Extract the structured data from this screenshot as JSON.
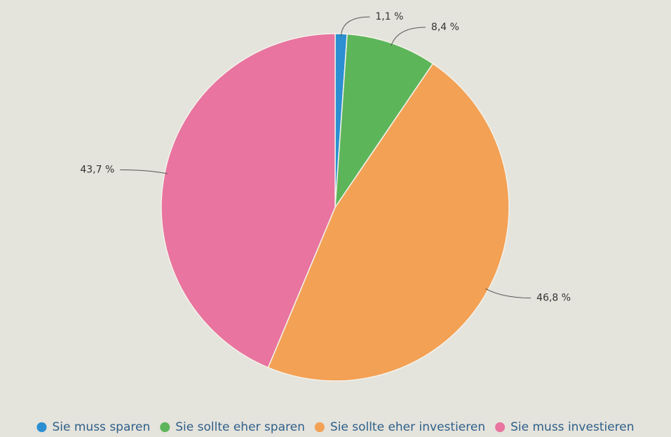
{
  "chart_data": {
    "type": "pie",
    "categories": [
      "Sie muss sparen",
      "Sie sollte eher sparen",
      "Sie sollte eher investieren",
      "Sie muss investieren"
    ],
    "values": [
      1.1,
      8.4,
      46.8,
      43.7
    ],
    "value_labels": [
      "1,1 %",
      "8,4 %",
      "46,8 %",
      "43,7 %"
    ],
    "colors": [
      "#2b8fd1",
      "#5db55a",
      "#f3a155",
      "#e8749f"
    ],
    "legend": "bottom"
  }
}
